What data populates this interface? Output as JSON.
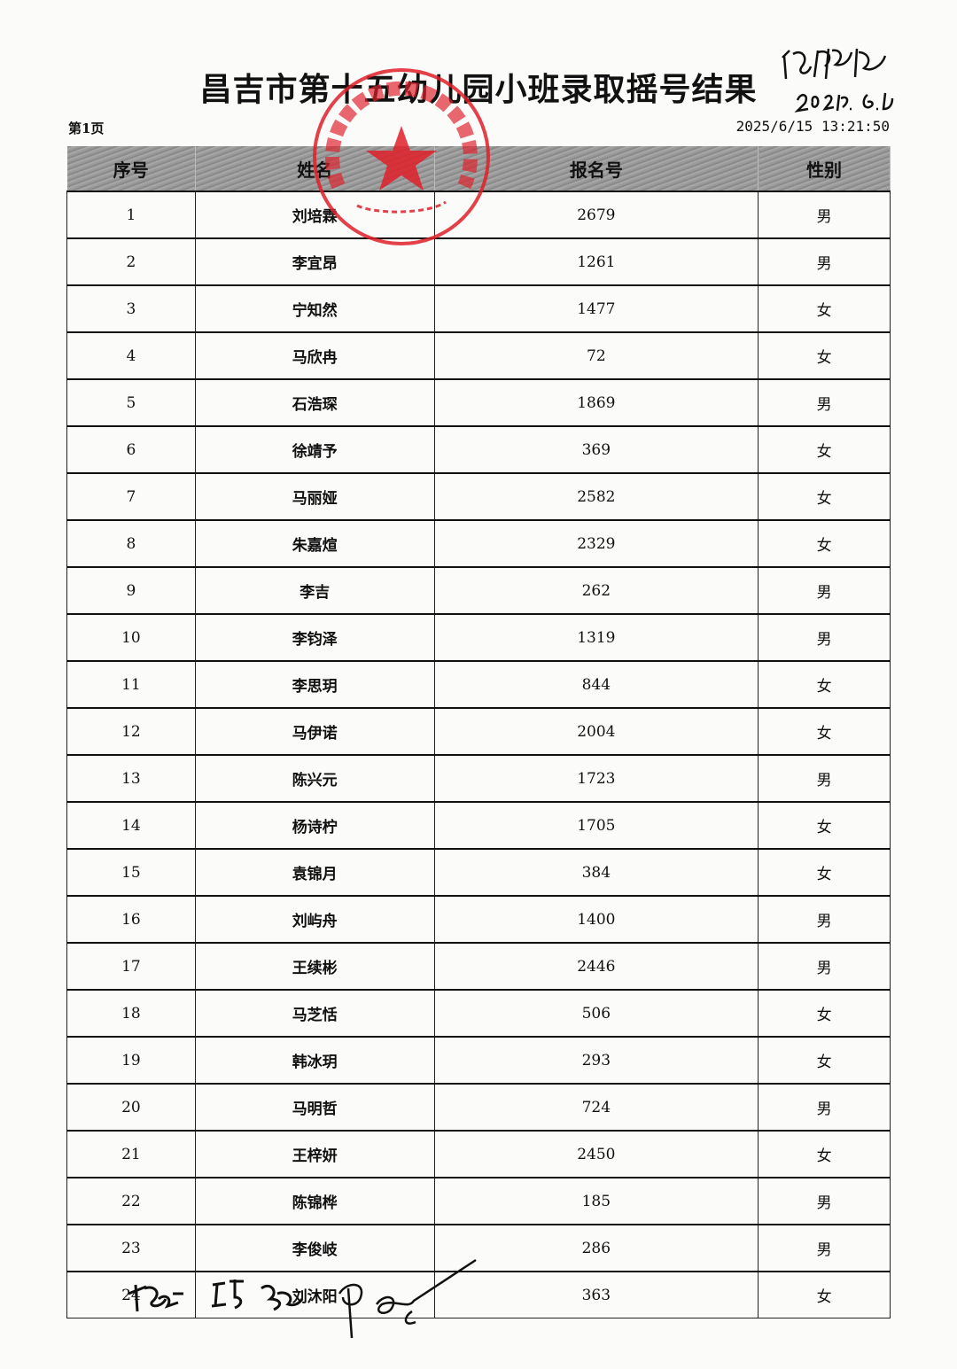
{
  "document": {
    "title": "昌吉市第十五幼儿园小班录取摇号结果",
    "page_label": "第1页",
    "timestamp": "2025/6/15 13:21:50",
    "stamp_text": "昌吉市第十五幼儿园",
    "stamp_color": "#e0202a"
  },
  "table": {
    "headers": [
      "序号",
      "姓名",
      "报名号",
      "性别"
    ],
    "rows": [
      [
        "1",
        "刘培霖",
        "2679",
        "男"
      ],
      [
        "2",
        "李宜昂",
        "1261",
        "男"
      ],
      [
        "3",
        "宁知然",
        "1477",
        "女"
      ],
      [
        "4",
        "马欣冉",
        "72",
        "女"
      ],
      [
        "5",
        "石浩琛",
        "1869",
        "男"
      ],
      [
        "6",
        "徐靖予",
        "369",
        "女"
      ],
      [
        "7",
        "马丽娅",
        "2582",
        "女"
      ],
      [
        "8",
        "朱嘉煊",
        "2329",
        "女"
      ],
      [
        "9",
        "李吉",
        "262",
        "男"
      ],
      [
        "10",
        "李钧泽",
        "1319",
        "男"
      ],
      [
        "11",
        "李思玥",
        "844",
        "女"
      ],
      [
        "12",
        "马伊诺",
        "2004",
        "女"
      ],
      [
        "13",
        "陈兴元",
        "1723",
        "男"
      ],
      [
        "14",
        "杨诗柠",
        "1705",
        "女"
      ],
      [
        "15",
        "袁锦月",
        "384",
        "女"
      ],
      [
        "16",
        "刘屿舟",
        "1400",
        "男"
      ],
      [
        "17",
        "王续彬",
        "2446",
        "男"
      ],
      [
        "18",
        "马芝恬",
        "506",
        "女"
      ],
      [
        "19",
        "韩冰玥",
        "293",
        "女"
      ],
      [
        "20",
        "马明哲",
        "724",
        "男"
      ],
      [
        "21",
        "王梓妍",
        "2450",
        "女"
      ],
      [
        "22",
        "陈锦桦",
        "185",
        "男"
      ],
      [
        "23",
        "李俊岐",
        "286",
        "男"
      ],
      [
        "24",
        "刘沐阳",
        "363",
        "女"
      ]
    ]
  }
}
